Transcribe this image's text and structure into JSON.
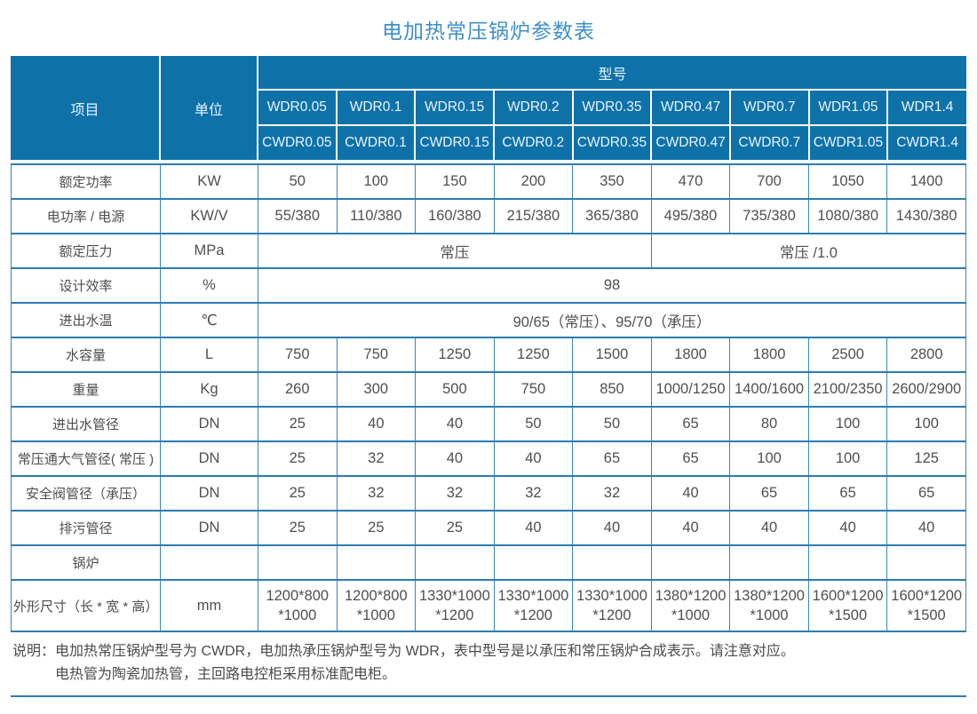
{
  "title": "电加热常压锅炉参数表",
  "colors": {
    "header_bg": "#0e72a9",
    "header_text": "#ecf4fa",
    "grid_border": "#2b7cb1",
    "title_text": "#3e8fcb",
    "body_text": "#4f4f4f"
  },
  "table": {
    "headers": {
      "item": "项目",
      "unit": "单位",
      "model": "型号"
    },
    "model_rows": {
      "wdr": [
        "WDR0.05",
        "WDR0.1",
        "WDR0.15",
        "WDR0.2",
        "WDR0.35",
        "WDR0.47",
        "WDR0.7",
        "WDR1.05",
        "WDR1.4"
      ],
      "cwdr": [
        "CWDR0.05",
        "CWDR0.1",
        "CWDR0.15",
        "CWDR0.2",
        "CWDR0.35",
        "CWDR0.47",
        "CWDR0.7",
        "CWDR1.05",
        "CWDR1.4"
      ]
    },
    "rows": [
      {
        "label": "额定功率",
        "unit": "KW",
        "values": [
          "50",
          "100",
          "150",
          "200",
          "350",
          "470",
          "700",
          "1050",
          "1400"
        ]
      },
      {
        "label": "电功率 / 电源",
        "unit": "KW/V",
        "values": [
          "55/380",
          "110/380",
          "160/380",
          "215/380",
          "365/380",
          "495/380",
          "735/380",
          "1080/380",
          "1430/380"
        ]
      },
      {
        "label": "额定压力",
        "unit": "MPa",
        "spans": [
          {
            "text": "常压",
            "cols": 5
          },
          {
            "text": "常压 /1.0",
            "cols": 4
          }
        ]
      },
      {
        "label": "设计效率",
        "unit": "%",
        "spans": [
          {
            "text": "98",
            "cols": 9
          }
        ]
      },
      {
        "label": "进出水温",
        "unit": "℃",
        "spans": [
          {
            "text": "90/65（常压）、95/70（承压）",
            "cols": 9
          }
        ]
      },
      {
        "label": "水容量",
        "unit": "L",
        "values": [
          "750",
          "750",
          "1250",
          "1250",
          "1500",
          "1800",
          "1800",
          "2500",
          "2800"
        ]
      },
      {
        "label": "重量",
        "unit": "Kg",
        "values": [
          "260",
          "300",
          "500",
          "750",
          "850",
          "1000/1250",
          "1400/1600",
          "2100/2350",
          "2600/2900"
        ]
      },
      {
        "label": "进出水管径",
        "unit": "DN",
        "values": [
          "25",
          "40",
          "40",
          "50",
          "50",
          "65",
          "80",
          "100",
          "100"
        ]
      },
      {
        "label": "常压通大气管径( 常压 )",
        "unit": "DN",
        "values": [
          "25",
          "32",
          "40",
          "40",
          "65",
          "65",
          "100",
          "100",
          "125"
        ]
      },
      {
        "label": "安全阀管径（承压）",
        "unit": "DN",
        "values": [
          "25",
          "32",
          "32",
          "32",
          "32",
          "40",
          "65",
          "65",
          "65"
        ]
      },
      {
        "label": "排污管径",
        "unit": "DN",
        "values": [
          "25",
          "25",
          "25",
          "40",
          "40",
          "40",
          "40",
          "40",
          "40"
        ]
      },
      {
        "label": "锅炉",
        "unit": "",
        "values": [
          "",
          "",
          "",
          "",
          "",
          "",
          "",
          "",
          ""
        ]
      },
      {
        "label": "外形尺寸（长 * 宽 * 高）",
        "unit": "mm",
        "values": [
          "1200*800\n*1000",
          "1200*800\n*1000",
          "1330*1000\n*1200",
          "1330*1000\n*1200",
          "1330*1000\n*1200",
          "1380*1200\n*1000",
          "1380*1200\n*1000",
          "1600*1200\n*1500",
          "1600*1200\n*1500"
        ]
      }
    ]
  },
  "notes": {
    "label": "说明：",
    "lines": [
      "电加热常压锅炉型号为 CWDR，电加热承压锅炉型号为 WDR，表中型号是以承压和常压锅炉合成表示。请注意对应。",
      "电热管为陶瓷加热管，主回路电控柜采用标准配电柜。"
    ]
  }
}
